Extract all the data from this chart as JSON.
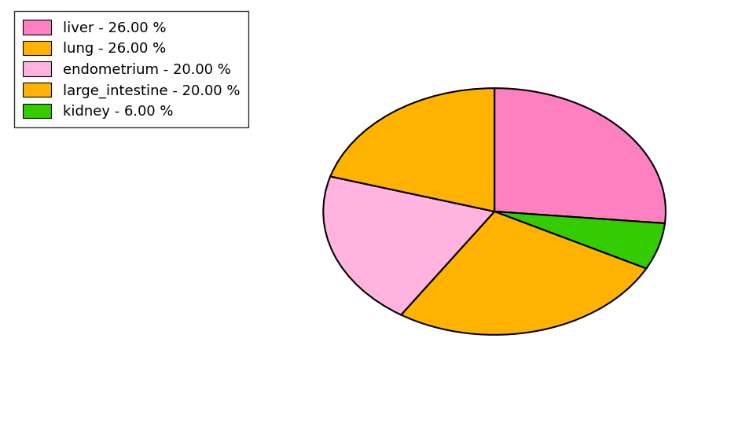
{
  "labels": [
    "liver",
    "kidney",
    "lung",
    "endometrium",
    "large_intestine"
  ],
  "values": [
    26.0,
    6.0,
    26.0,
    20.0,
    20.0
  ],
  "colors": [
    "#FF80C0",
    "#33CC00",
    "#FFB300",
    "#FFB3DE",
    "#FFB300"
  ],
  "legend_labels": [
    "liver - 26.00 %",
    "lung - 26.00 %",
    "endometrium - 20.00 %",
    "large_intestine - 20.00 %",
    "kidney - 6.00 %"
  ],
  "legend_colors": [
    "#FF80C0",
    "#FFB300",
    "#FFB3DE",
    "#FFB300",
    "#33CC00"
  ],
  "startangle": 90,
  "figsize": [
    9.39,
    5.38
  ],
  "dpi": 100,
  "edgecolor": "#000000",
  "linewidth": 1.5,
  "legend_fontsize": 13,
  "background_color": "#FFFFFF"
}
